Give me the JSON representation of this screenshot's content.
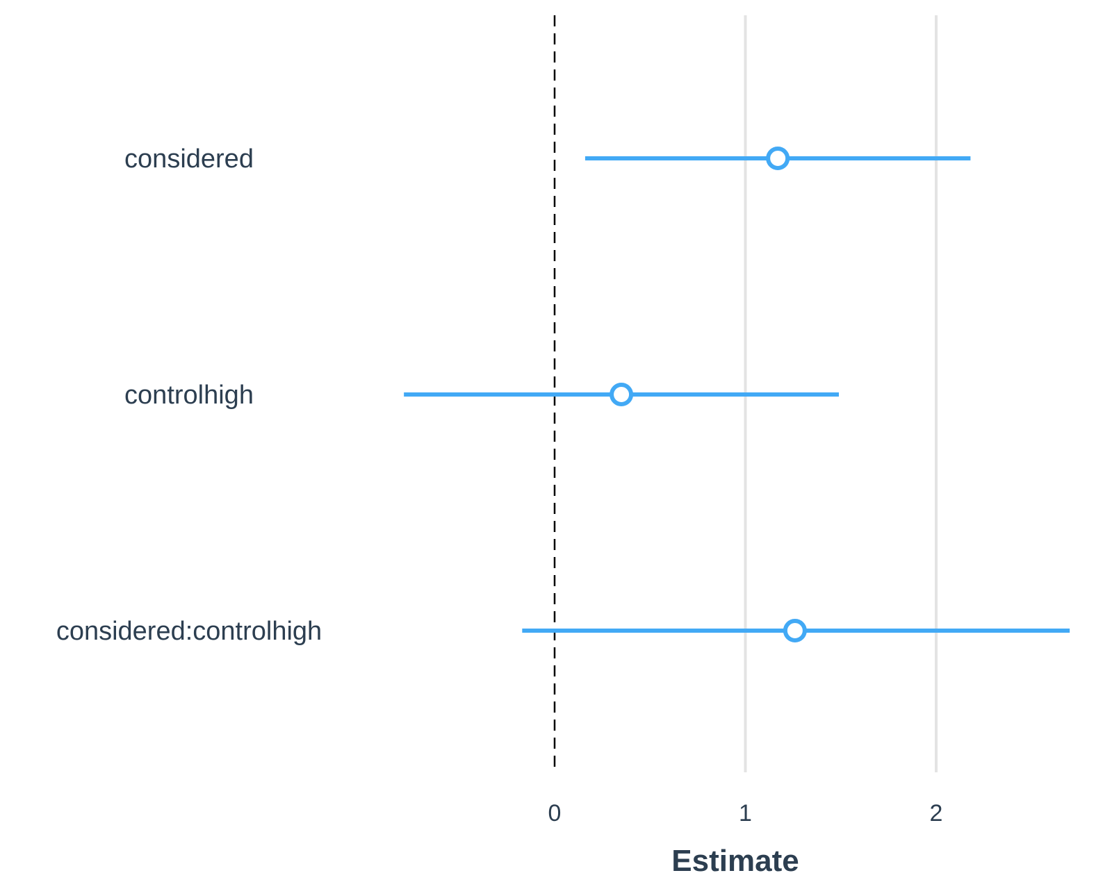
{
  "chart_data": {
    "type": "scatter",
    "subtype": "coefficient-plot",
    "title": "",
    "xlabel": "Estimate",
    "ylabel": "",
    "xlim": [
      -0.95,
      2.75
    ],
    "x_ticks": [
      "0",
      "1",
      "2"
    ],
    "x_tick_values": [
      0,
      1,
      2
    ],
    "reference_line": 0,
    "grid": "vertical-major",
    "terms": [
      {
        "term": "considered",
        "estimate": 1.17,
        "conf_low": 0.16,
        "conf_high": 2.18
      },
      {
        "term": "controlhigh",
        "estimate": 0.35,
        "conf_low": -0.79,
        "conf_high": 1.49
      },
      {
        "term": "considered:controlhigh",
        "estimate": 1.26,
        "conf_low": -0.17,
        "conf_high": 2.7
      }
    ],
    "colors": {
      "interval": "#42a9f5",
      "point_fill": "#ffffff",
      "grid": "#e3e3e3",
      "reference_line": "#000000",
      "text": "#2c3e50"
    }
  }
}
